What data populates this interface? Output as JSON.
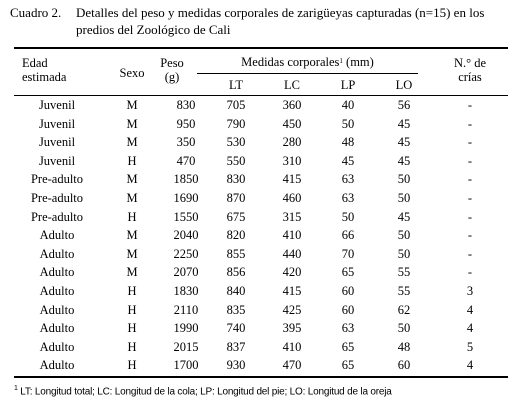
{
  "caption": {
    "number": "Cuadro 2.",
    "line1": "Detalles del peso y medidas corporales de zarigüeyas capturadas (n=15) en los",
    "line2": "predios del Zoológico de Cali"
  },
  "headers": {
    "edad_line1": "Edad",
    "edad_line2": "estimada",
    "sexo": "Sexo",
    "peso_line1": "Peso",
    "peso_line2": "(g)",
    "medidas": "Medidas corporales",
    "medidas_sup": "1",
    "medidas_unit": "(mm)",
    "lt": "LT",
    "lc": "LC",
    "lp": "LP",
    "lo": "LO",
    "crias_line1": "N.° de",
    "crias_line2": "crías"
  },
  "rows": [
    {
      "edad": "Juvenil",
      "sexo": "M",
      "peso": "830",
      "lt": "705",
      "lc": "360",
      "lp": "40",
      "lo": "56",
      "crias": "-"
    },
    {
      "edad": "Juvenil",
      "sexo": "M",
      "peso": "950",
      "lt": "790",
      "lc": "450",
      "lp": "50",
      "lo": "45",
      "crias": "-"
    },
    {
      "edad": "Juvenil",
      "sexo": "M",
      "peso": "350",
      "lt": "530",
      "lc": "280",
      "lp": "48",
      "lo": "45",
      "crias": "-"
    },
    {
      "edad": "Juvenil",
      "sexo": "H",
      "peso": "470",
      "lt": "550",
      "lc": "310",
      "lp": "45",
      "lo": "45",
      "crias": "-"
    },
    {
      "edad": "Pre-adulto",
      "sexo": "M",
      "peso": "1850",
      "lt": "830",
      "lc": "415",
      "lp": "63",
      "lo": "50",
      "crias": "-"
    },
    {
      "edad": "Pre-adulto",
      "sexo": "M",
      "peso": "1690",
      "lt": "870",
      "lc": "460",
      "lp": "63",
      "lo": "50",
      "crias": "-"
    },
    {
      "edad": "Pre-adulto",
      "sexo": "H",
      "peso": "1550",
      "lt": "675",
      "lc": "315",
      "lp": "50",
      "lo": "45",
      "crias": "-"
    },
    {
      "edad": "Adulto",
      "sexo": "M",
      "peso": "2040",
      "lt": "820",
      "lc": "410",
      "lp": "66",
      "lo": "50",
      "crias": "-"
    },
    {
      "edad": "Adulto",
      "sexo": "M",
      "peso": "2250",
      "lt": "855",
      "lc": "440",
      "lp": "70",
      "lo": "50",
      "crias": "-"
    },
    {
      "edad": "Adulto",
      "sexo": "M",
      "peso": "2070",
      "lt": "856",
      "lc": "420",
      "lp": "65",
      "lo": "55",
      "crias": "-"
    },
    {
      "edad": "Adulto",
      "sexo": "H",
      "peso": "1830",
      "lt": "840",
      "lc": "415",
      "lp": "60",
      "lo": "55",
      "crias": "3"
    },
    {
      "edad": "Adulto",
      "sexo": "H",
      "peso": "2110",
      "lt": "835",
      "lc": "425",
      "lp": "60",
      "lo": "62",
      "crias": "4"
    },
    {
      "edad": "Adulto",
      "sexo": "H",
      "peso": "1990",
      "lt": "740",
      "lc": "395",
      "lp": "63",
      "lo": "50",
      "crias": "4"
    },
    {
      "edad": "Adulto",
      "sexo": "H",
      "peso": "2015",
      "lt": "837",
      "lc": "410",
      "lp": "65",
      "lo": "48",
      "crias": "5"
    },
    {
      "edad": "Adulto",
      "sexo": "H",
      "peso": "1700",
      "lt": "930",
      "lc": "470",
      "lp": "65",
      "lo": "60",
      "crias": "4"
    }
  ],
  "footnote": {
    "sup": "1",
    "text": " LT: Longitud total; LC: Longitud de la cola; LP: Longitud del pie; LO: Longitud de la oreja"
  }
}
